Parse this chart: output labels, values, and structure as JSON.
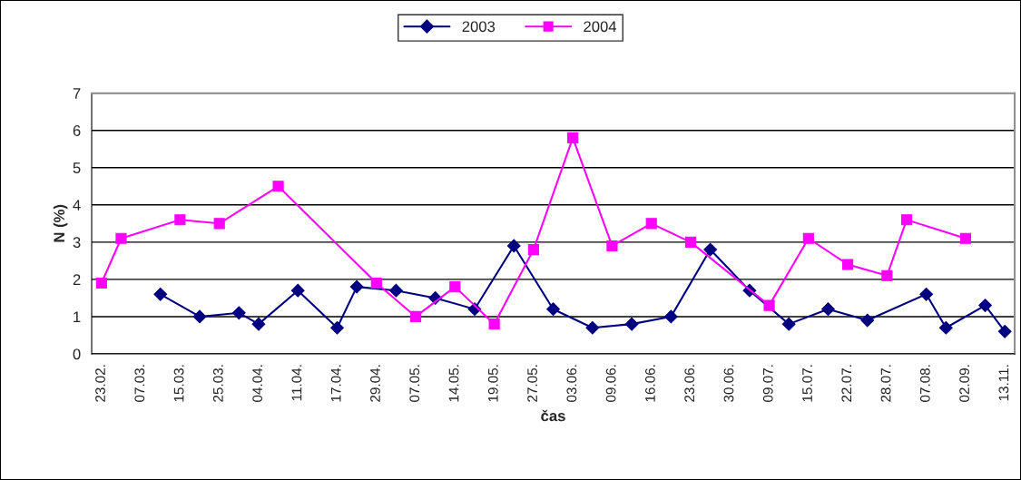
{
  "chart_data": {
    "type": "line",
    "xlabel": "čas",
    "ylabel": "N (%)",
    "categories": [
      "23.02.",
      null,
      "07.03.",
      null,
      "15.03.",
      null,
      "25.03.",
      null,
      "04.04.",
      null,
      "11.04.",
      null,
      "17.04.",
      null,
      "29.04.",
      null,
      "07.05.",
      null,
      "14.05.",
      null,
      "19.05.",
      null,
      "27.05.",
      null,
      "03.06.",
      null,
      "09.06.",
      null,
      "16.06.",
      null,
      "23.06.",
      null,
      "30.06.",
      null,
      "09.07.",
      null,
      "15.07.",
      null,
      "22.07.",
      null,
      "28.07.",
      null,
      "07.08.",
      null,
      "02.09.",
      null,
      "13.11."
    ],
    "series": [
      {
        "name": "2003",
        "color": "#000080",
        "marker": "diamond",
        "values": [
          null,
          null,
          null,
          1.6,
          null,
          1.0,
          null,
          1.1,
          0.8,
          null,
          1.7,
          null,
          0.7,
          1.8,
          null,
          1.7,
          null,
          1.5,
          null,
          1.2,
          null,
          2.9,
          null,
          1.2,
          null,
          0.7,
          null,
          0.8,
          null,
          1.0,
          null,
          2.8,
          null,
          1.7,
          null,
          0.8,
          null,
          1.2,
          null,
          0.9,
          null,
          null,
          1.6,
          0.7,
          null,
          1.3,
          0.6
        ]
      },
      {
        "name": "2004",
        "color": "#ff00ff",
        "marker": "square",
        "values": [
          1.9,
          3.1,
          null,
          null,
          3.6,
          null,
          3.5,
          null,
          null,
          4.5,
          null,
          null,
          null,
          null,
          1.9,
          null,
          1.0,
          null,
          1.8,
          null,
          0.8,
          null,
          2.8,
          null,
          5.8,
          null,
          2.9,
          null,
          3.5,
          null,
          3.0,
          null,
          null,
          null,
          1.3,
          null,
          3.1,
          null,
          2.4,
          null,
          2.1,
          3.6,
          null,
          null,
          3.1,
          null,
          null
        ]
      }
    ],
    "ylim": [
      0,
      7
    ],
    "yticks": [
      0,
      1,
      2,
      3,
      4,
      5,
      6,
      7
    ],
    "grid": "y",
    "legend": "top",
    "line_style": "solid"
  }
}
